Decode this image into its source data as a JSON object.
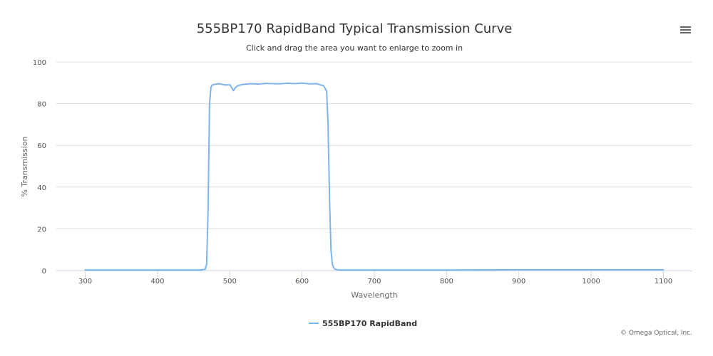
{
  "chart_data": {
    "type": "line",
    "title": "555BP170 RapidBand Typical Transmission Curve",
    "subtitle": "Click and drag the area you want to enlarge to zoom in",
    "xlabel": "Wavelength",
    "ylabel": "% Transmission",
    "xlim": [
      260,
      1140
    ],
    "ylim": [
      0,
      100
    ],
    "x_ticks": [
      "300",
      "400",
      "500",
      "600",
      "700",
      "800",
      "900",
      "1000",
      "1100"
    ],
    "y_ticks": [
      "0",
      "20",
      "40",
      "60",
      "80",
      "100"
    ],
    "grid": "horizontal",
    "legend_position": "bottom-center",
    "series": [
      {
        "name": "555BP170 RapidBand",
        "color": "#7cb5ec",
        "x": [
          300,
          400,
          460,
          466,
          468,
          470,
          472,
          474,
          476,
          480,
          485,
          490,
          495,
          500,
          503,
          505,
          507,
          510,
          515,
          520,
          530,
          540,
          550,
          560,
          570,
          580,
          590,
          600,
          610,
          620,
          630,
          634,
          636,
          638,
          640,
          642,
          644,
          646,
          650,
          660,
          700,
          800,
          900,
          1000,
          1100
        ],
        "y": [
          0.3,
          0.3,
          0.3,
          0.6,
          3,
          30,
          80,
          88,
          89,
          89.3,
          89.6,
          89.2,
          88.9,
          89.1,
          87.5,
          86.2,
          87.4,
          88.4,
          89.0,
          89.3,
          89.6,
          89.4,
          89.7,
          89.6,
          89.5,
          89.8,
          89.6,
          89.9,
          89.5,
          89.6,
          88.5,
          86,
          70,
          35,
          10,
          3,
          1.2,
          0.6,
          0.3,
          0.3,
          0.3,
          0.3,
          0.4,
          0.4,
          0.4
        ]
      }
    ]
  },
  "credits": "© Omega Optical, Inc.",
  "menu_icon": "hamburger-menu-icon"
}
